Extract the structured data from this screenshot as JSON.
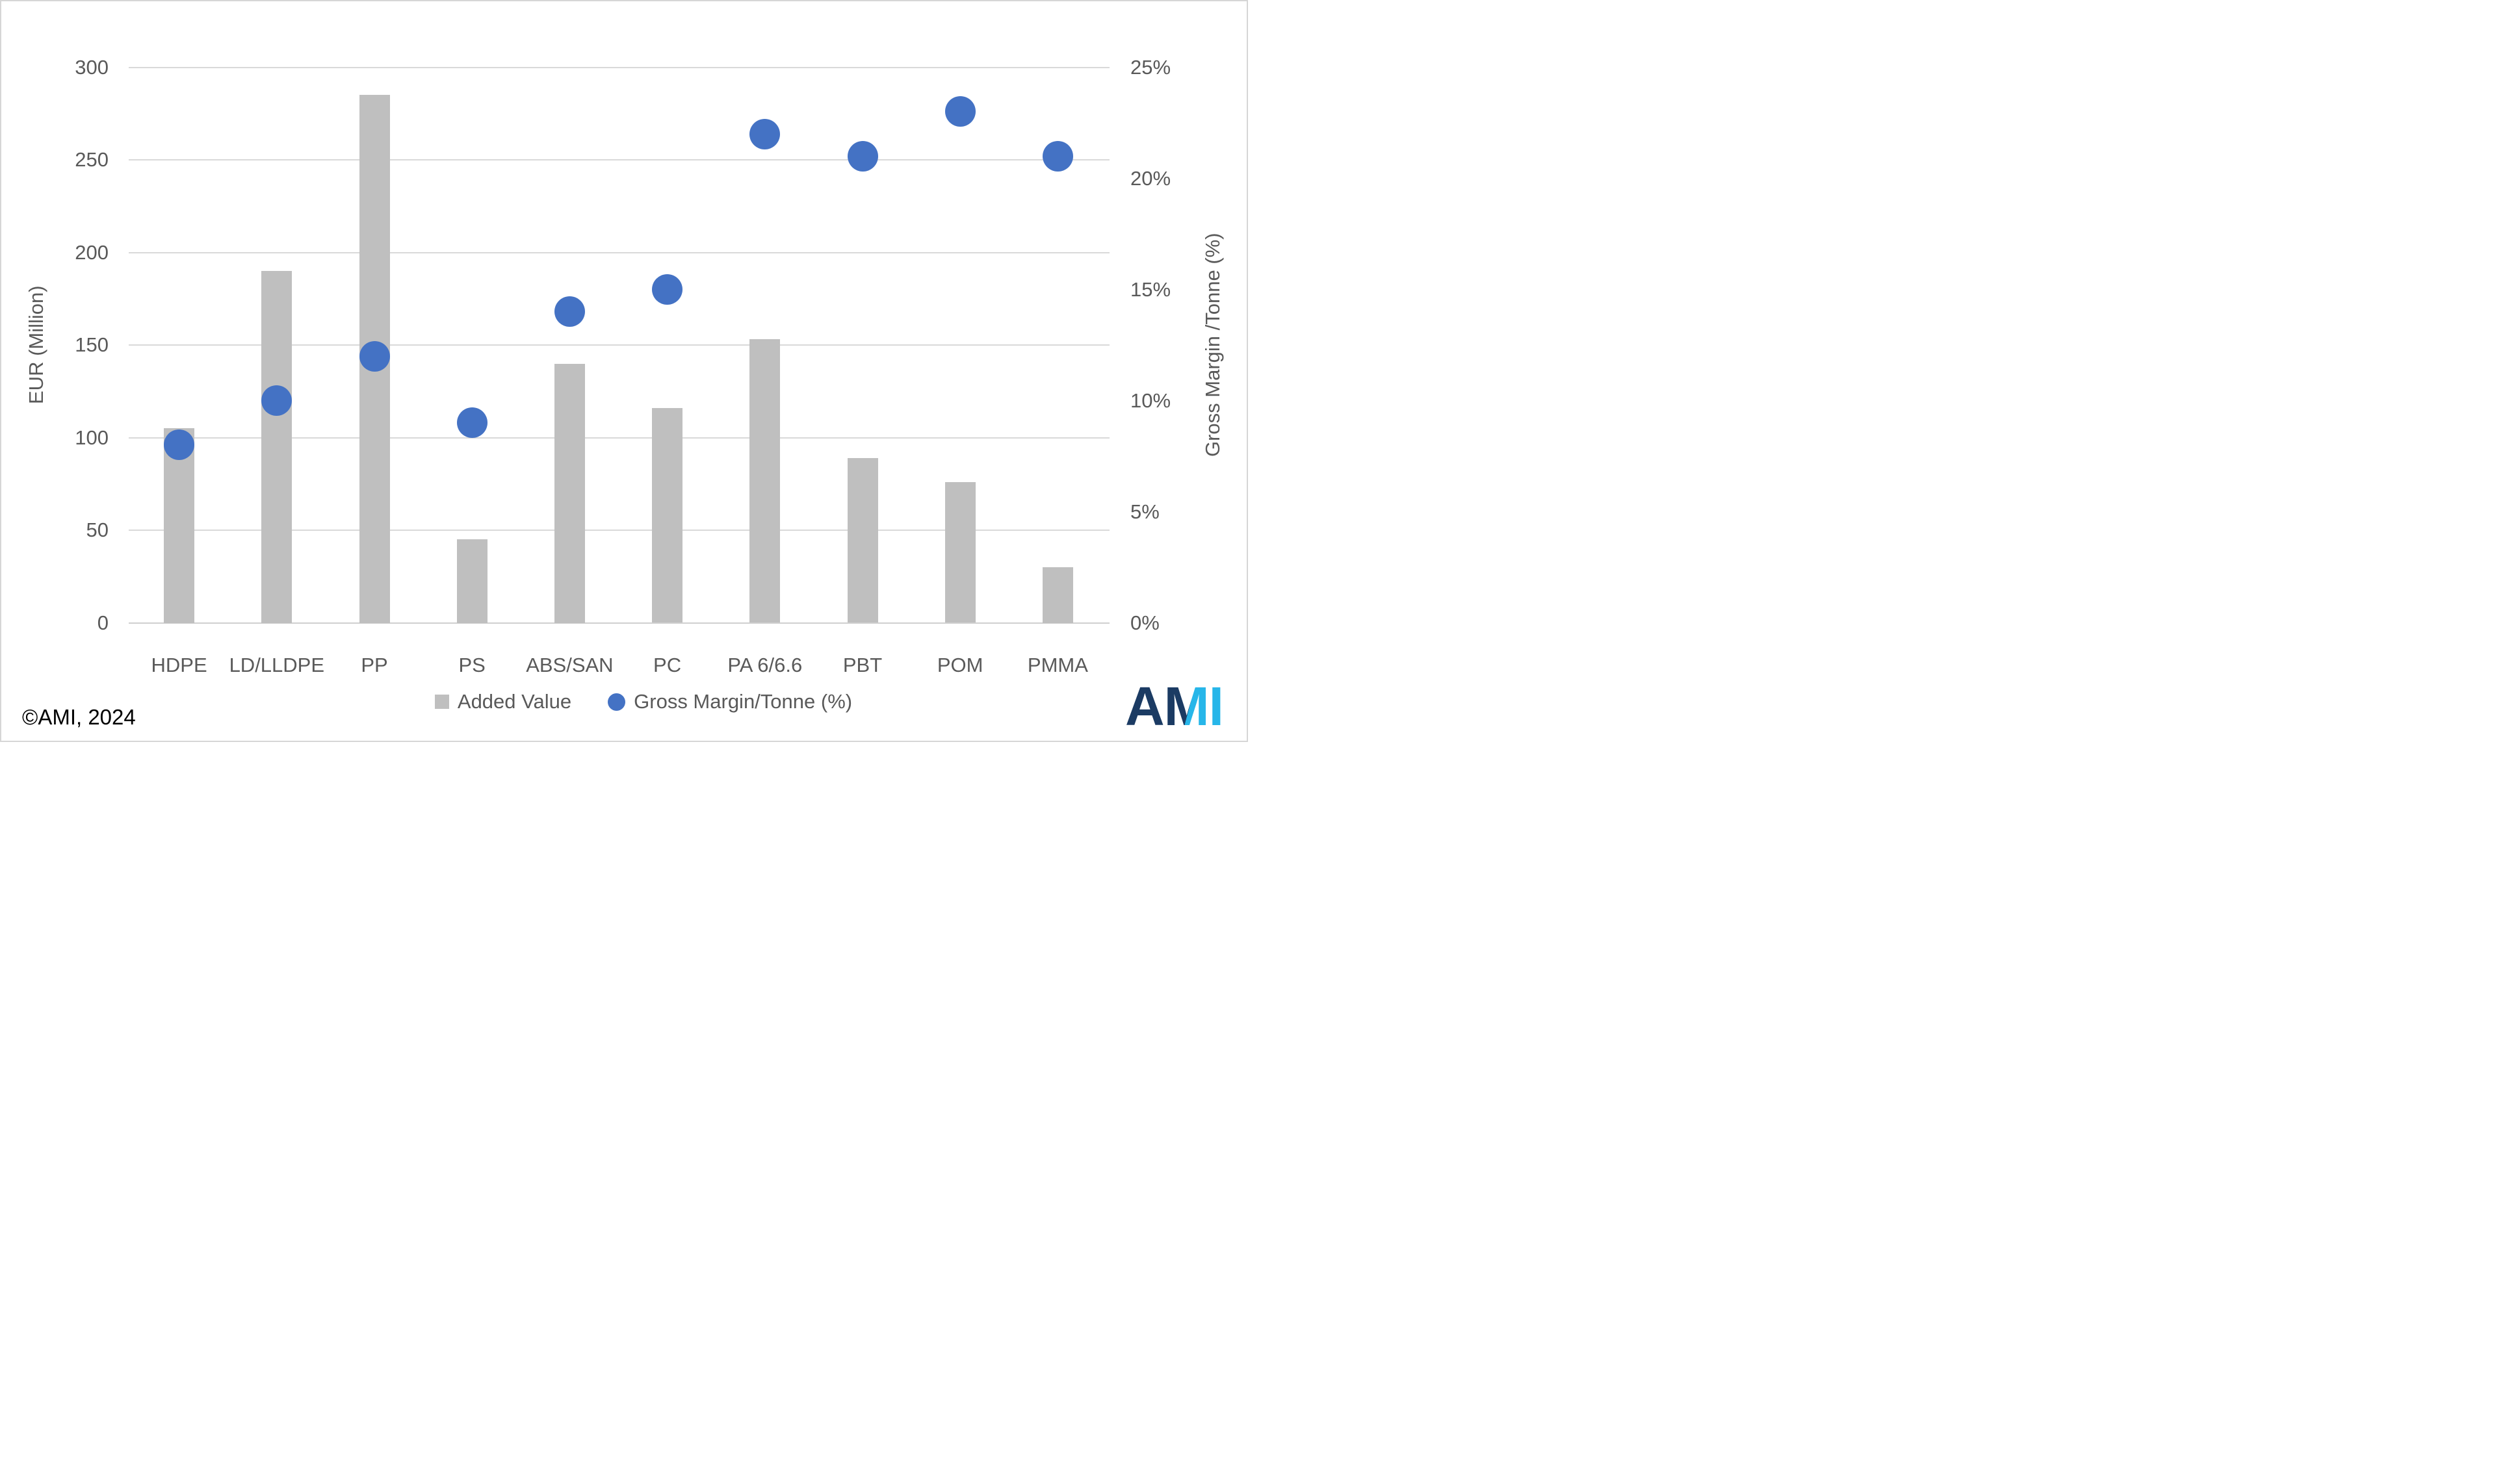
{
  "chart_data": {
    "type": "combo",
    "categories": [
      "HDPE",
      "LD/LLDPE",
      "PP",
      "PS",
      "ABS/SAN",
      "PC",
      "PA 6/6.6",
      "PBT",
      "POM",
      "PMMA"
    ],
    "series": [
      {
        "name": "Added Value",
        "type": "bar",
        "axis": "left",
        "color": "#BFBFBF",
        "values": [
          105,
          190,
          285,
          45,
          140,
          116,
          153,
          89,
          76,
          30
        ]
      },
      {
        "name": "Gross Margin/Tonne (%)",
        "type": "scatter",
        "axis": "right",
        "color": "#4472C4",
        "values": [
          8,
          10,
          12,
          9,
          14,
          15,
          22,
          21,
          23,
          21
        ]
      }
    ],
    "left_axis": {
      "label": "EUR (Million)",
      "min": 0,
      "max": 300,
      "step": 50,
      "ticks": [
        {
          "v": 300,
          "label": "300"
        },
        {
          "v": 250,
          "label": "250"
        },
        {
          "v": 200,
          "label": "200"
        },
        {
          "v": 150,
          "label": "150"
        },
        {
          "v": 100,
          "label": "100"
        },
        {
          "v": 50,
          "label": "50"
        },
        {
          "v": 0,
          "label": "0"
        }
      ]
    },
    "right_axis": {
      "label": "Gross Margin /Tonne (%)",
      "min": 0,
      "max": 25,
      "ticks": [
        {
          "v": 25,
          "label": "25%"
        },
        {
          "v": 20,
          "label": "20%"
        },
        {
          "v": 15,
          "label": "15%"
        },
        {
          "v": 10,
          "label": "10%"
        },
        {
          "v": 5,
          "label": "5%"
        },
        {
          "v": 0,
          "label": "0%"
        }
      ]
    },
    "grid": true,
    "legend_position": "bottom"
  },
  "legend": {
    "items": [
      {
        "label": "Added Value",
        "shape": "square",
        "color": "#BFBFBF"
      },
      {
        "label": "Gross Margin/Tonne (%)",
        "shape": "circle",
        "color": "#4472C4"
      }
    ]
  },
  "footer": {
    "copyright": "©AMI, 2024"
  },
  "logo": {
    "a": "A",
    "m": "M",
    "i": "I",
    "dark_color": "#1B3B63",
    "light_color": "#27B6E9"
  },
  "colors": {
    "bar": "#BFBFBF",
    "dot": "#4472C4",
    "gridline": "#D9D9D9",
    "axis_text": "#595959",
    "background": "#FFFFFF",
    "border": "#D6D6D6"
  }
}
